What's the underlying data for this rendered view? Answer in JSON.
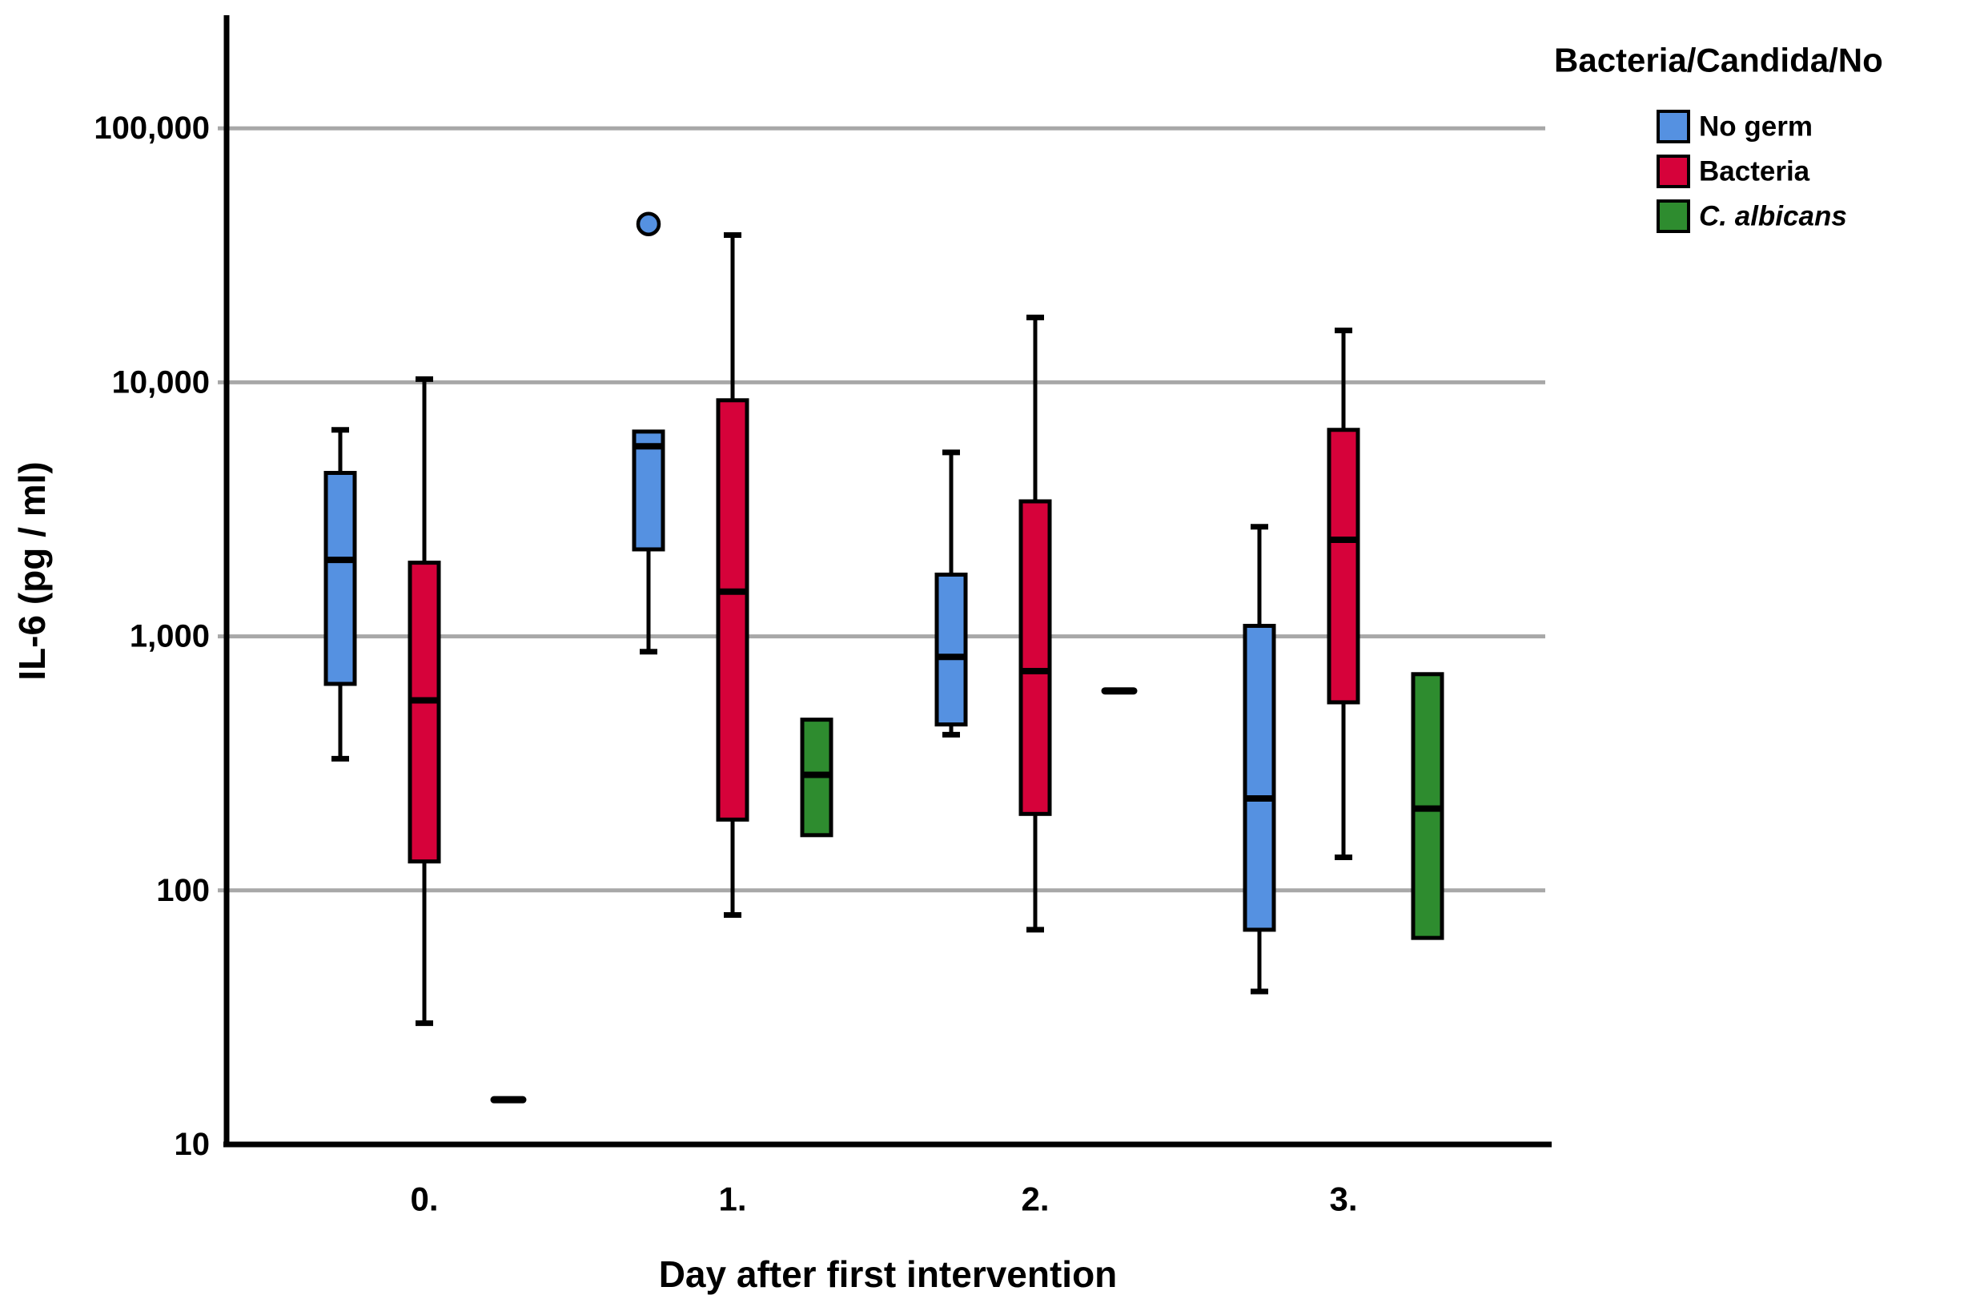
{
  "legend": {
    "title": "Bacteria/Candida/No",
    "items": [
      {
        "label": "No germ",
        "color": "#5591E1",
        "italic": false
      },
      {
        "label": "Bacteria",
        "color": "#D6023A",
        "italic": false
      },
      {
        "label": "C. albicans",
        "color": "#2E8C2F",
        "italic": true
      }
    ]
  },
  "chart_data": {
    "type": "boxplot",
    "title": "",
    "xlabel": "Day after first intervention",
    "ylabel": "IL-6 (pg / ml)",
    "x_categories": [
      "0.",
      "1.",
      "2.",
      "3."
    ],
    "y_scale": "log10",
    "ylim": [
      10,
      250000
    ],
    "grid": true,
    "legend_position": "top-right",
    "y_ticks": [
      10,
      100,
      1000,
      10000,
      100000
    ],
    "y_tick_labels": [
      "10",
      "100",
      "1,000",
      "10,000",
      "100,000"
    ],
    "gridline_values": [
      100,
      1000,
      10000,
      100000
    ],
    "colors": {
      "grid": "#A8A8A8",
      "axis": "#000000",
      "background": "#ffffff"
    },
    "series": [
      {
        "name": "No germ",
        "color": "#5591E1",
        "boxes": [
          {
            "day": "0.",
            "min": 330,
            "q1": 650,
            "median": 2000,
            "q3": 4400,
            "max": 6500,
            "outliers": []
          },
          {
            "day": "1.",
            "min": 870,
            "q1": 2200,
            "median": 5600,
            "q3": 6400,
            "max": 6400,
            "outliers": [
              42000
            ]
          },
          {
            "day": "2.",
            "min": 410,
            "q1": 450,
            "median": 830,
            "q3": 1750,
            "max": 5300,
            "outliers": []
          },
          {
            "day": "3.",
            "min": 40,
            "q1": 70,
            "median": 230,
            "q3": 1100,
            "max": 2700,
            "outliers": []
          }
        ]
      },
      {
        "name": "Bacteria",
        "color": "#D6023A",
        "boxes": [
          {
            "day": "0.",
            "min": 30,
            "q1": 130,
            "median": 560,
            "q3": 1950,
            "max": 10300,
            "outliers": []
          },
          {
            "day": "1.",
            "min": 80,
            "q1": 190,
            "median": 1500,
            "q3": 8500,
            "max": 38000,
            "outliers": []
          },
          {
            "day": "2.",
            "min": 70,
            "q1": 200,
            "median": 730,
            "q3": 3400,
            "max": 18000,
            "outliers": []
          },
          {
            "day": "3.",
            "min": 135,
            "q1": 550,
            "median": 2400,
            "q3": 6500,
            "max": 16000,
            "outliers": []
          }
        ]
      },
      {
        "name": "C. albicans",
        "color": "#2E8C2F",
        "boxes": [
          {
            "day": "0.",
            "single": 15,
            "outliers": []
          },
          {
            "day": "1.",
            "min": null,
            "q1": 165,
            "median": 285,
            "q3": 470,
            "max": null,
            "outliers": []
          },
          {
            "day": "2.",
            "single": 610,
            "outliers": []
          },
          {
            "day": "3.",
            "min": null,
            "q1": 65,
            "median": 210,
            "q3": 710,
            "max": null,
            "outliers": []
          }
        ]
      }
    ]
  }
}
